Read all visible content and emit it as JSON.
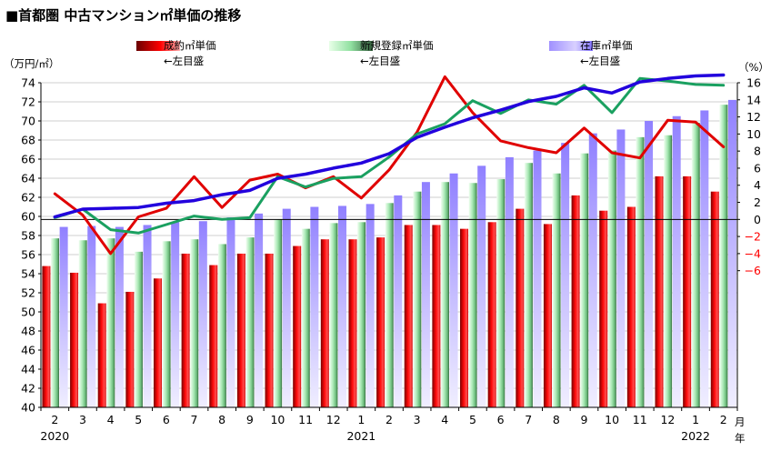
{
  "title": "■首都圏 中古マンション㎡単価の推移",
  "legend": [
    {
      "label": "成約㎡単価",
      "sub": "←左目盛",
      "color": "#e00000"
    },
    {
      "label": "新規登録㎡単価",
      "sub": "←左目盛",
      "color": "#2ca070"
    },
    {
      "label": "在庫㎡単価",
      "sub": "←左目盛",
      "color": "#3322cc"
    }
  ],
  "left_unit": "（万円/㎡）",
  "right_unit": "（%）",
  "x_unit_month": "月",
  "x_unit_year": "年",
  "chart_data": {
    "type": "bar",
    "categories": [
      "2",
      "3",
      "4",
      "5",
      "6",
      "7",
      "8",
      "9",
      "10",
      "11",
      "12",
      "1",
      "2",
      "3",
      "4",
      "5",
      "6",
      "7",
      "8",
      "9",
      "10",
      "11",
      "12",
      "1",
      "2"
    ],
    "year_labels": [
      {
        "index": 0,
        "label": "2020"
      },
      {
        "index": 11,
        "label": "2021"
      },
      {
        "index": 23,
        "label": "2022"
      }
    ],
    "ylim_left": [
      40,
      74
    ],
    "yticks_left": [
      40,
      42,
      44,
      46,
      48,
      50,
      52,
      54,
      56,
      58,
      60,
      62,
      64,
      66,
      68,
      70,
      72,
      74
    ],
    "ylim_right": [
      -22,
      16
    ],
    "yticks_right": [
      16,
      14,
      12,
      10,
      8,
      6,
      4,
      2,
      0,
      -2,
      -4,
      -6
    ],
    "bar_series": [
      {
        "name": "成約㎡単価",
        "color": "#e00000",
        "values": [
          54.8,
          54.1,
          50.9,
          52.1,
          53.5,
          56.1,
          54.9,
          56.1,
          56.1,
          56.9,
          57.6,
          57.6,
          57.8,
          59.1,
          59.1,
          58.7,
          59.4,
          60.8,
          59.2,
          62.2,
          60.6,
          61.0,
          64.2,
          64.2,
          62.6
        ]
      },
      {
        "name": "新規登録㎡単価",
        "color": "#2ca070",
        "values": [
          57.7,
          57.5,
          57.7,
          56.3,
          57.4,
          57.6,
          57.1,
          57.8,
          59.7,
          58.7,
          59.3,
          59.4,
          61.4,
          62.6,
          63.6,
          63.5,
          63.9,
          65.6,
          64.5,
          66.6,
          66.9,
          68.3,
          68.5,
          69.8,
          71.7
        ]
      },
      {
        "name": "在庫㎡単価",
        "color": "#3322cc",
        "values": [
          58.9,
          59.0,
          58.9,
          59.1,
          59.4,
          59.5,
          59.9,
          60.3,
          60.8,
          61.0,
          61.1,
          61.3,
          62.2,
          63.6,
          64.5,
          65.3,
          66.2,
          66.9,
          67.7,
          68.7,
          69.1,
          70.0,
          70.5,
          71.1,
          72.2
        ]
      }
    ],
    "line_series": [
      {
        "name": "成約㎡単価 前年比",
        "color": "#e00000",
        "values": [
          3.0,
          0.5,
          -4.0,
          0.3,
          1.3,
          5.0,
          1.4,
          4.6,
          5.3,
          3.7,
          5.0,
          2.5,
          5.8,
          10.2,
          16.7,
          12.5,
          9.2,
          8.4,
          7.8,
          10.7,
          7.8,
          7.2,
          11.6,
          11.4,
          8.5
        ]
      },
      {
        "name": "新規登録㎡単価 前年比",
        "color": "#1aa060",
        "values": [
          0.2,
          1.2,
          -1.2,
          -1.6,
          -0.6,
          0.4,
          0.0,
          0.2,
          5.0,
          3.8,
          4.8,
          5.0,
          7.3,
          10.0,
          11.2,
          13.9,
          12.4,
          14.0,
          13.5,
          15.7,
          12.5,
          16.5,
          16.2,
          15.8,
          15.7
        ]
      },
      {
        "name": "在庫㎡単価 前年比",
        "color": "#2200dd",
        "values": [
          0.3,
          1.2,
          1.3,
          1.4,
          1.9,
          2.2,
          2.9,
          3.4,
          4.8,
          5.3,
          6.0,
          6.6,
          7.7,
          9.6,
          10.8,
          11.9,
          12.8,
          13.8,
          14.4,
          15.4,
          14.8,
          16.1,
          16.5,
          16.8,
          16.9
        ]
      }
    ]
  }
}
